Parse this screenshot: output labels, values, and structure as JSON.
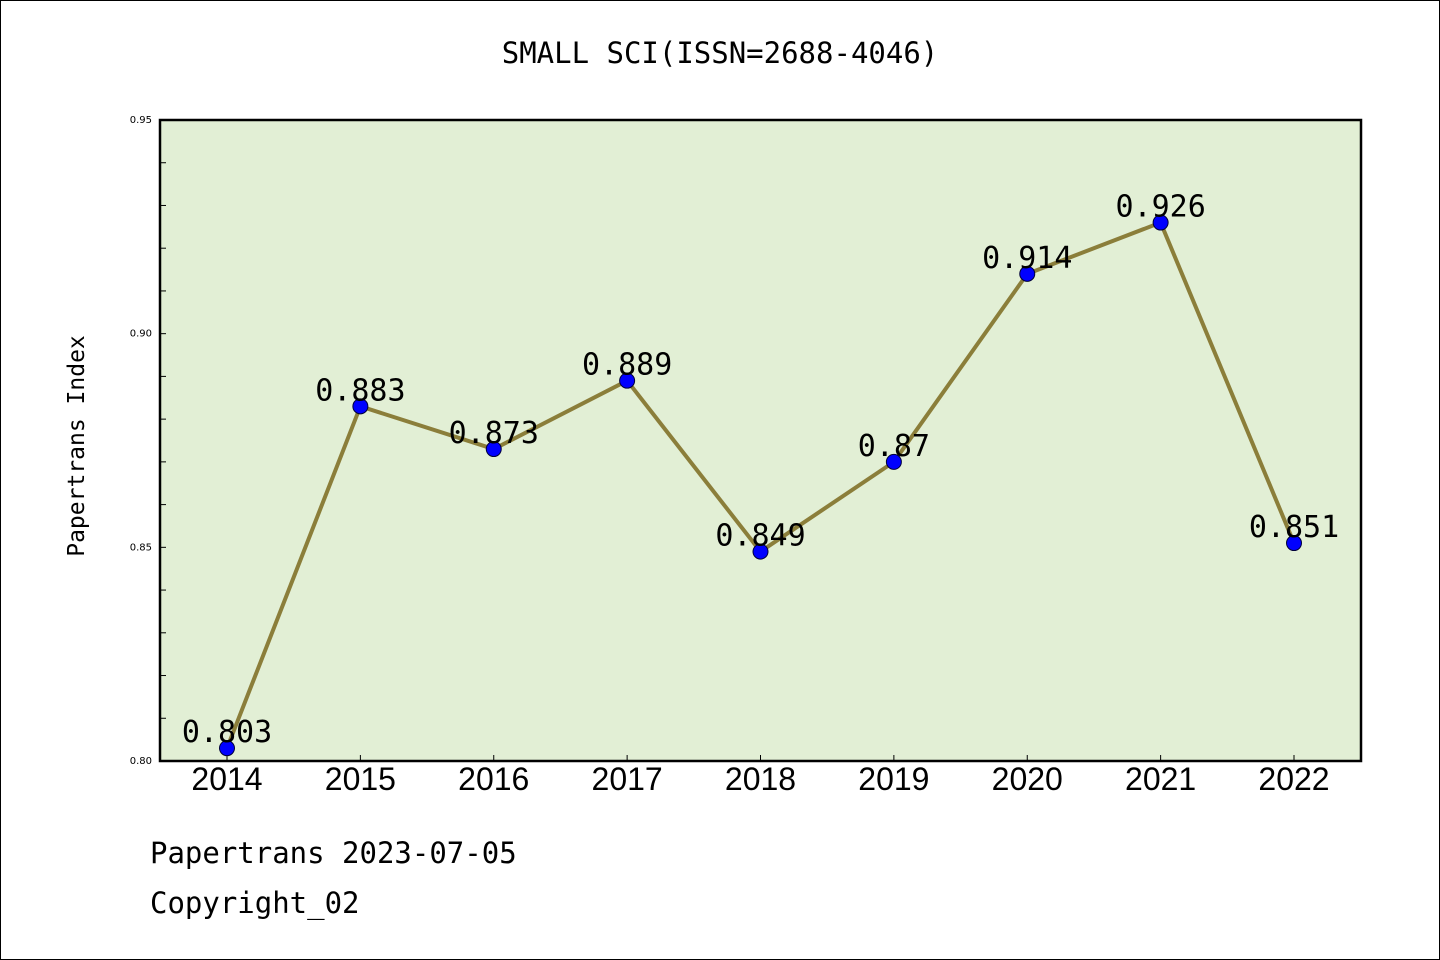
{
  "chart_data": {
    "type": "line",
    "title": "SMALL SCI(ISSN=2688-4046)",
    "xlabel": "",
    "ylabel": "Papertrans Index",
    "categories": [
      "2014",
      "2015",
      "2016",
      "2017",
      "2018",
      "2019",
      "2020",
      "2021",
      "2022"
    ],
    "values": [
      0.803,
      0.883,
      0.873,
      0.889,
      0.849,
      0.87,
      0.914,
      0.926,
      0.851
    ],
    "data_labels": [
      "0.803",
      "0.883",
      "0.873",
      "0.889",
      "0.849",
      "0.87",
      "0.914",
      "0.926",
      "0.851"
    ],
    "ylim": [
      0.8,
      0.95
    ],
    "yticks": [
      "0.80",
      "0.85",
      "0.90",
      "0.95"
    ],
    "grid": false,
    "legend": "none",
    "colors": {
      "plot_background": "#e2efd5",
      "line": "#8b7e3a",
      "marker": "#0000ff"
    }
  },
  "footer": {
    "source": "Papertrans 2023-07-05",
    "copyright": "Copyright_02"
  }
}
